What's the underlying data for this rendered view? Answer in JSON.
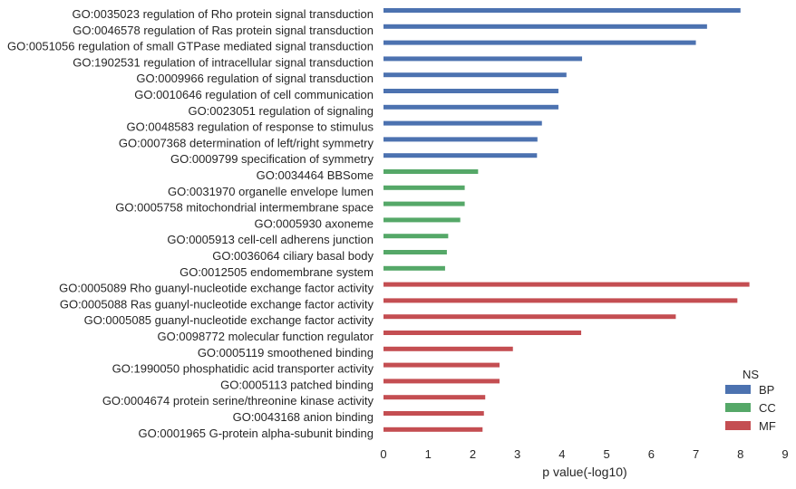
{
  "chart_data": {
    "type": "bar",
    "orientation": "horizontal",
    "xlabel": "p value(-log10)",
    "ylabel": "",
    "xlim": [
      0,
      9
    ],
    "xticks": [
      "0",
      "1",
      "2",
      "3",
      "4",
      "5",
      "6",
      "7",
      "8",
      "9"
    ],
    "grid": false,
    "legend": {
      "title": "NS",
      "placement": "lower-right",
      "entries": [
        {
          "name": "BP",
          "color": "#4c72b0"
        },
        {
          "name": "CC",
          "color": "#55a868"
        },
        {
          "name": "MF",
          "color": "#c44e52"
        }
      ]
    },
    "bars": [
      {
        "label": "GO:0035023 regulation of Rho protein signal transduction",
        "value": 8.0,
        "ns": "BP"
      },
      {
        "label": "GO:0046578 regulation of Ras protein signal transduction",
        "value": 7.25,
        "ns": "BP"
      },
      {
        "label": "GO:0051056 regulation of small GTPase mediated signal transduction",
        "value": 7.0,
        "ns": "BP"
      },
      {
        "label": "GO:1902531 regulation of intracellular signal transduction",
        "value": 4.45,
        "ns": "BP"
      },
      {
        "label": "GO:0009966 regulation of signal transduction",
        "value": 4.1,
        "ns": "BP"
      },
      {
        "label": "GO:0010646 regulation of cell communication",
        "value": 3.92,
        "ns": "BP"
      },
      {
        "label": "GO:0023051 regulation of signaling",
        "value": 3.92,
        "ns": "BP"
      },
      {
        "label": "GO:0048583 regulation of response to stimulus",
        "value": 3.55,
        "ns": "BP"
      },
      {
        "label": "GO:0007368 determination of left/right symmetry",
        "value": 3.45,
        "ns": "BP"
      },
      {
        "label": "GO:0009799 specification of symmetry",
        "value": 3.44,
        "ns": "BP"
      },
      {
        "label": "GO:0034464 BBSome",
        "value": 2.12,
        "ns": "CC"
      },
      {
        "label": "GO:0031970 organelle envelope lumen",
        "value": 1.82,
        "ns": "CC"
      },
      {
        "label": "GO:0005758 mitochondrial intermembrane space",
        "value": 1.82,
        "ns": "CC"
      },
      {
        "label": "GO:0005930 axoneme",
        "value": 1.72,
        "ns": "CC"
      },
      {
        "label": "GO:0005913 cell-cell adherens junction",
        "value": 1.45,
        "ns": "CC"
      },
      {
        "label": "GO:0036064 ciliary basal body",
        "value": 1.42,
        "ns": "CC"
      },
      {
        "label": "GO:0012505 endomembrane system",
        "value": 1.38,
        "ns": "CC"
      },
      {
        "label": "GO:0005089 Rho guanyl-nucleotide exchange factor activity",
        "value": 8.2,
        "ns": "MF"
      },
      {
        "label": "GO:0005088 Ras guanyl-nucleotide exchange factor activity",
        "value": 7.93,
        "ns": "MF"
      },
      {
        "label": "GO:0005085 guanyl-nucleotide exchange factor activity",
        "value": 6.55,
        "ns": "MF"
      },
      {
        "label": "GO:0098772 molecular function regulator",
        "value": 4.43,
        "ns": "MF"
      },
      {
        "label": "GO:0005119 smoothened binding",
        "value": 2.9,
        "ns": "MF"
      },
      {
        "label": "GO:1990050 phosphatidic acid transporter activity",
        "value": 2.6,
        "ns": "MF"
      },
      {
        "label": "GO:0005113 patched binding",
        "value": 2.6,
        "ns": "MF"
      },
      {
        "label": "GO:0004674 protein serine/threonine kinase activity",
        "value": 2.28,
        "ns": "MF"
      },
      {
        "label": "GO:0043168 anion binding",
        "value": 2.25,
        "ns": "MF"
      },
      {
        "label": "GO:0001965 G-protein alpha-subunit binding",
        "value": 2.22,
        "ns": "MF"
      }
    ]
  }
}
